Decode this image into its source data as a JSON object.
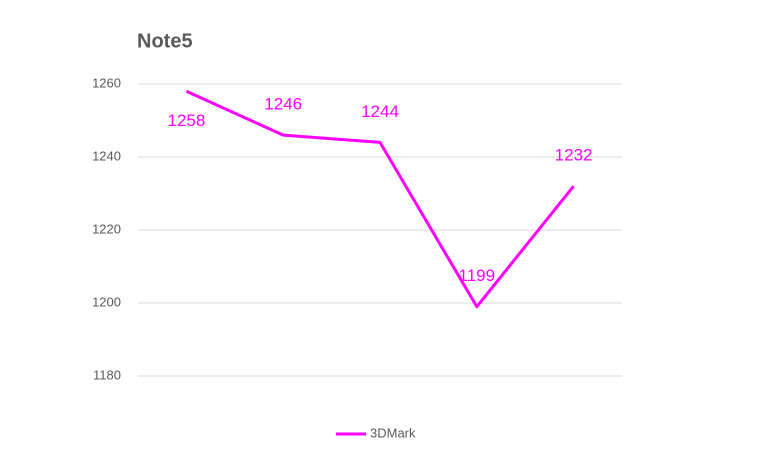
{
  "chart_data": {
    "type": "line",
    "title": "Note5",
    "categories": [
      null,
      null,
      null,
      null,
      null
    ],
    "series": [
      {
        "name": "3DMark",
        "color": "#ff00ff",
        "values": [
          1258,
          1246,
          1244,
          1199,
          1232
        ]
      }
    ],
    "ylim": [
      1180,
      1260
    ],
    "yticks": [
      1180,
      1200,
      1220,
      1240,
      1260
    ],
    "grid": true,
    "legend": "bottom"
  }
}
